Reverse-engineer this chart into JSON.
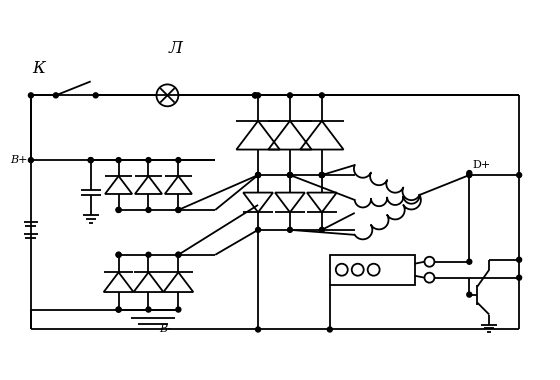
{
  "title_L": "Л",
  "title_K": "К",
  "label_Bplus": "B+",
  "label_Bminus": "B-",
  "label_Dplus": "D+",
  "bg_color": "#ffffff",
  "line_color": "#000000",
  "linewidth": 1.3,
  "figsize": [
    5.6,
    3.8
  ],
  "dpi": 100
}
